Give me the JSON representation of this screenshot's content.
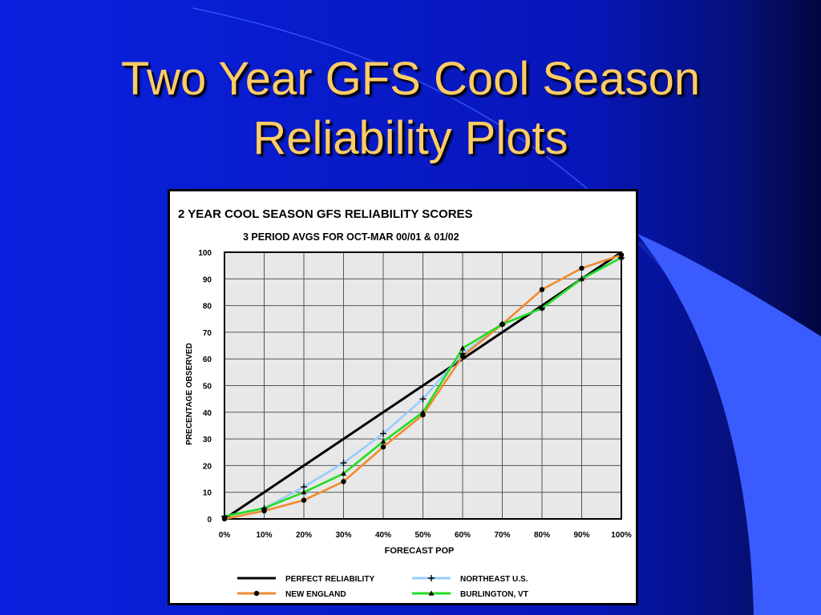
{
  "slide": {
    "title_line1": "Two Year GFS Cool Season",
    "title_line2": "Reliability Plots"
  },
  "colors": {
    "background": "#0a1fd6",
    "title": "#ffcc66",
    "plot_area": "#e8e8e8"
  },
  "chart_data": {
    "type": "line",
    "title": "2 YEAR COOL SEASON GFS RELIABILITY SCORES",
    "subtitle": "3 PERIOD AVGS FOR OCT-MAR 00/01 & 01/02",
    "xlabel": "FORECAST POP",
    "ylabel": "PRECENTAGE OBSERVED",
    "x": [
      0,
      10,
      20,
      30,
      40,
      50,
      60,
      70,
      80,
      90,
      100
    ],
    "x_tick_labels": [
      "0%",
      "10%",
      "20%",
      "30%",
      "40%",
      "50%",
      "60%",
      "70%",
      "80%",
      "90%",
      "100%"
    ],
    "y_tick_labels": [
      "0",
      "10",
      "20",
      "30",
      "40",
      "50",
      "60",
      "70",
      "80",
      "90",
      "100"
    ],
    "xlim": [
      0,
      100
    ],
    "ylim": [
      0,
      100
    ],
    "grid": true,
    "legend_position": "bottom",
    "series": [
      {
        "name": "PERFECT RELIABILITY",
        "color": "#000000",
        "marker": "none",
        "values": [
          0,
          10,
          20,
          30,
          40,
          50,
          60,
          70,
          80,
          90,
          100
        ]
      },
      {
        "name": "NORTHEAST U.S.",
        "color": "#99ccff",
        "marker": "plus",
        "values": [
          1,
          4,
          12,
          21,
          32,
          45,
          62,
          73,
          79,
          90,
          98
        ]
      },
      {
        "name": "NEW ENGLAND",
        "color": "#f08a30",
        "marker": "circle",
        "values": [
          0,
          3,
          7,
          14,
          27,
          39,
          61,
          73,
          86,
          94,
          99
        ]
      },
      {
        "name": "BURLINGTON, VT",
        "color": "#22dd22",
        "marker": "triangle",
        "values": [
          1,
          4,
          10,
          17,
          29,
          40,
          64,
          73,
          79,
          90,
          98
        ]
      }
    ]
  }
}
